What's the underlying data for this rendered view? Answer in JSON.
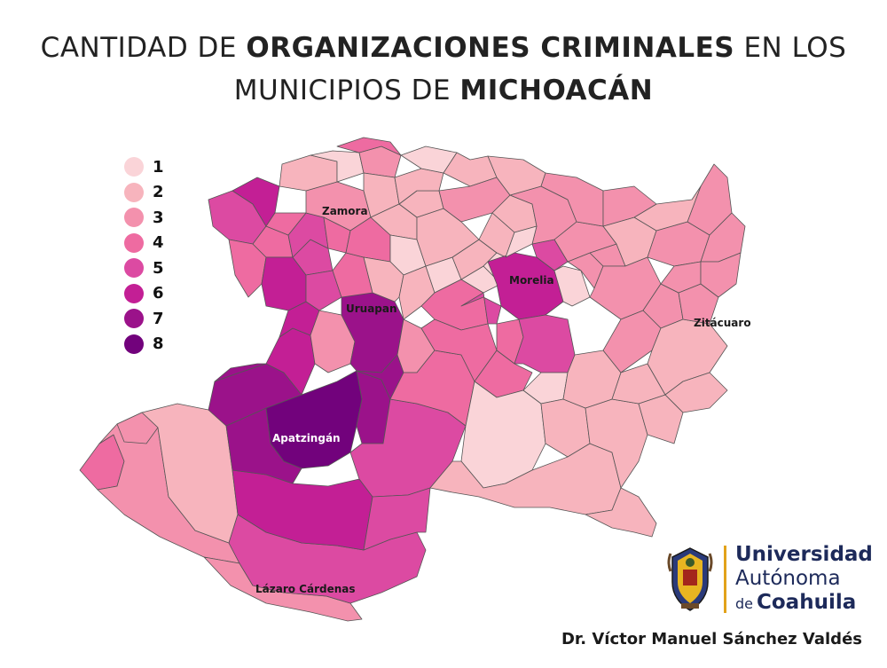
{
  "title": {
    "line1_pre": "CANTIDAD DE ",
    "line1_bold": "ORGANIZACIONES CRIMINALES",
    "line1_post": " EN LOS",
    "line2_pre": "MUNICIPIOS DE ",
    "line2_bold": "MICHOACÁN"
  },
  "legend": {
    "items": [
      {
        "label": "1",
        "color": "#fad4d8"
      },
      {
        "label": "2",
        "color": "#f7b4bd"
      },
      {
        "label": "3",
        "color": "#f391ad"
      },
      {
        "label": "4",
        "color": "#ee6ba1"
      },
      {
        "label": "5",
        "color": "#dc4aa2"
      },
      {
        "label": "6",
        "color": "#c31f95"
      },
      {
        "label": "7",
        "color": "#9b128a"
      },
      {
        "label": "8",
        "color": "#72027c"
      }
    ]
  },
  "map": {
    "labels": {
      "zamora": "Zamora",
      "morelia": "Morelia",
      "uruapan": "Uruapan",
      "zitacuaro": "Zitácuaro",
      "apatzingan": "Apatzingán",
      "lazaro": "Lázaro Cárdenas"
    },
    "border_color": "#444444"
  },
  "logo": {
    "line1": "Universidad",
    "line2": "Autónoma",
    "line3_small": "de",
    "line3": "Coahuila"
  },
  "author": "Dr. Víctor Manuel Sánchez Valdés"
}
